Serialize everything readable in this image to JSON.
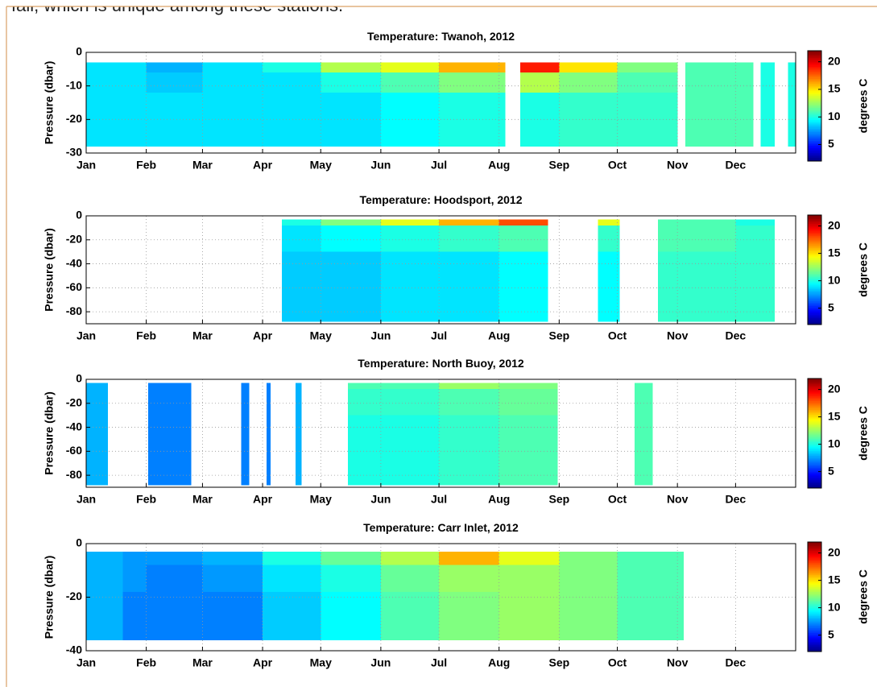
{
  "text_above": "fall, which is unique among these stations.",
  "chart_data": [
    {
      "type": "heatmap",
      "title": "Temperature: Twanoh, 2012",
      "ylabel": "Pressure (dbar)",
      "colorbar_label": "degrees C",
      "colormap": "jet",
      "clim": [
        2,
        22
      ],
      "colorbar_ticks": [
        5,
        10,
        15,
        20
      ],
      "grid": true,
      "xlim": [
        1,
        367
      ],
      "xticks": [
        {
          "value": 1,
          "label": "Jan"
        },
        {
          "value": 32,
          "label": "Feb"
        },
        {
          "value": 61,
          "label": "Mar"
        },
        {
          "value": 92,
          "label": "Apr"
        },
        {
          "value": 122,
          "label": "May"
        },
        {
          "value": 153,
          "label": "Jun"
        },
        {
          "value": 183,
          "label": "Jul"
        },
        {
          "value": 214,
          "label": "Aug"
        },
        {
          "value": 245,
          "label": "Sep"
        },
        {
          "value": 275,
          "label": "Oct"
        },
        {
          "value": 306,
          "label": "Nov"
        },
        {
          "value": 336,
          "label": "Dec"
        }
      ],
      "ylim": [
        -30,
        0
      ],
      "yticks": [
        0,
        -10,
        -20,
        -30
      ],
      "x": [
        1,
        32,
        61,
        92,
        122,
        153,
        183,
        217,
        225,
        245,
        275,
        306,
        310,
        345,
        349,
        356,
        363,
        367
      ],
      "y": [
        -3,
        -6,
        -12,
        -28
      ],
      "values": [
        [
          9,
          8,
          9,
          10,
          13,
          14,
          16,
          null,
          19,
          15,
          12,
          null,
          11,
          null,
          10,
          null,
          10
        ],
        [
          9,
          8.5,
          9,
          9,
          10,
          11,
          12,
          null,
          13,
          12,
          11,
          null,
          11,
          null,
          10,
          null,
          10
        ],
        [
          9,
          9,
          9,
          9,
          9,
          9.5,
          10,
          null,
          10,
          10.5,
          10.5,
          null,
          11,
          null,
          10,
          null,
          10
        ]
      ]
    },
    {
      "type": "heatmap",
      "title": "Temperature: Hoodsport, 2012",
      "ylabel": "Pressure (dbar)",
      "colorbar_label": "degrees C",
      "colormap": "jet",
      "clim": [
        2,
        22
      ],
      "colorbar_ticks": [
        5,
        10,
        15,
        20
      ],
      "grid": true,
      "xlim": [
        1,
        367
      ],
      "xticks": [
        {
          "value": 1,
          "label": "Jan"
        },
        {
          "value": 32,
          "label": "Feb"
        },
        {
          "value": 61,
          "label": "Mar"
        },
        {
          "value": 92,
          "label": "Apr"
        },
        {
          "value": 122,
          "label": "May"
        },
        {
          "value": 153,
          "label": "Jun"
        },
        {
          "value": 183,
          "label": "Jul"
        },
        {
          "value": 214,
          "label": "Aug"
        },
        {
          "value": 245,
          "label": "Sep"
        },
        {
          "value": 275,
          "label": "Oct"
        },
        {
          "value": 306,
          "label": "Nov"
        },
        {
          "value": 336,
          "label": "Dec"
        }
      ],
      "ylim": [
        -90,
        0
      ],
      "yticks": [
        0,
        -20,
        -40,
        -60,
        -80
      ],
      "x": [
        102,
        122,
        153,
        183,
        214,
        239,
        265,
        276,
        296,
        336,
        356
      ],
      "y": [
        -3,
        -8,
        -30,
        -88
      ],
      "values": [
        [
          10,
          12,
          14,
          16,
          18,
          null,
          14,
          null,
          11,
          10
        ],
        [
          9,
          9.5,
          10,
          10.5,
          11,
          null,
          10.5,
          null,
          11,
          10.5
        ],
        [
          8.5,
          8.5,
          9,
          9,
          9.5,
          null,
          9.5,
          null,
          10.5,
          10.5
        ]
      ]
    },
    {
      "type": "heatmap",
      "title": "Temperature: North Buoy, 2012",
      "ylabel": "Pressure (dbar)",
      "colorbar_label": "degrees C",
      "colormap": "jet",
      "clim": [
        2,
        22
      ],
      "colorbar_ticks": [
        5,
        10,
        15,
        20
      ],
      "grid": true,
      "xlim": [
        1,
        367
      ],
      "xticks": [
        {
          "value": 1,
          "label": "Jan"
        },
        {
          "value": 32,
          "label": "Feb"
        },
        {
          "value": 61,
          "label": "Mar"
        },
        {
          "value": 92,
          "label": "Apr"
        },
        {
          "value": 122,
          "label": "May"
        },
        {
          "value": 153,
          "label": "Jun"
        },
        {
          "value": 183,
          "label": "Jul"
        },
        {
          "value": 214,
          "label": "Aug"
        },
        {
          "value": 245,
          "label": "Sep"
        },
        {
          "value": 275,
          "label": "Oct"
        },
        {
          "value": 306,
          "label": "Nov"
        },
        {
          "value": 336,
          "label": "Dec"
        }
      ],
      "ylim": [
        -90,
        0
      ],
      "yticks": [
        0,
        -20,
        -40,
        -60,
        -80
      ],
      "x": [
        1,
        12,
        33,
        55,
        81,
        85,
        94,
        96,
        109,
        112,
        136,
        183,
        214,
        244,
        284,
        293
      ],
      "y": [
        -3,
        -8,
        -30,
        -88
      ],
      "values": [
        [
          8,
          null,
          7,
          null,
          7,
          null,
          7,
          null,
          8,
          null,
          11,
          12.5,
          12,
          null,
          11
        ],
        [
          8,
          null,
          7,
          null,
          7,
          null,
          7,
          null,
          8,
          null,
          10.5,
          11,
          11.5,
          null,
          11
        ],
        [
          8,
          null,
          7,
          null,
          7,
          null,
          7,
          null,
          8,
          null,
          10,
          10.5,
          11,
          null,
          11
        ]
      ]
    },
    {
      "type": "heatmap",
      "title": "Temperature: Carr Inlet, 2012",
      "ylabel": "Pressure (dbar)",
      "colorbar_label": "degrees C",
      "colormap": "jet",
      "clim": [
        2,
        22
      ],
      "colorbar_ticks": [
        5,
        10,
        15,
        20
      ],
      "grid": true,
      "xlim": [
        1,
        367
      ],
      "xticks": [
        {
          "value": 1,
          "label": "Jan"
        },
        {
          "value": 32,
          "label": "Feb"
        },
        {
          "value": 61,
          "label": "Mar"
        },
        {
          "value": 92,
          "label": "Apr"
        },
        {
          "value": 122,
          "label": "May"
        },
        {
          "value": 153,
          "label": "Jun"
        },
        {
          "value": 183,
          "label": "Jul"
        },
        {
          "value": 214,
          "label": "Aug"
        },
        {
          "value": 245,
          "label": "Sep"
        },
        {
          "value": 275,
          "label": "Oct"
        },
        {
          "value": 306,
          "label": "Nov"
        },
        {
          "value": 336,
          "label": "Dec"
        }
      ],
      "ylim": [
        -40,
        0
      ],
      "yticks": [
        0,
        -20,
        -40
      ],
      "x": [
        1,
        20,
        32,
        61,
        92,
        122,
        153,
        183,
        214,
        245,
        275,
        309
      ],
      "y": [
        -3,
        -8,
        -18,
        -36
      ],
      "values": [
        [
          8,
          7.5,
          7.5,
          8,
          10,
          11.5,
          13,
          16,
          14,
          12,
          11
        ],
        [
          8,
          7.5,
          7,
          7.5,
          9,
          10,
          11.5,
          12.5,
          12.5,
          12,
          11
        ],
        [
          8,
          7,
          7,
          7,
          8.5,
          9.5,
          11,
          12,
          12.5,
          12,
          11
        ]
      ]
    }
  ]
}
